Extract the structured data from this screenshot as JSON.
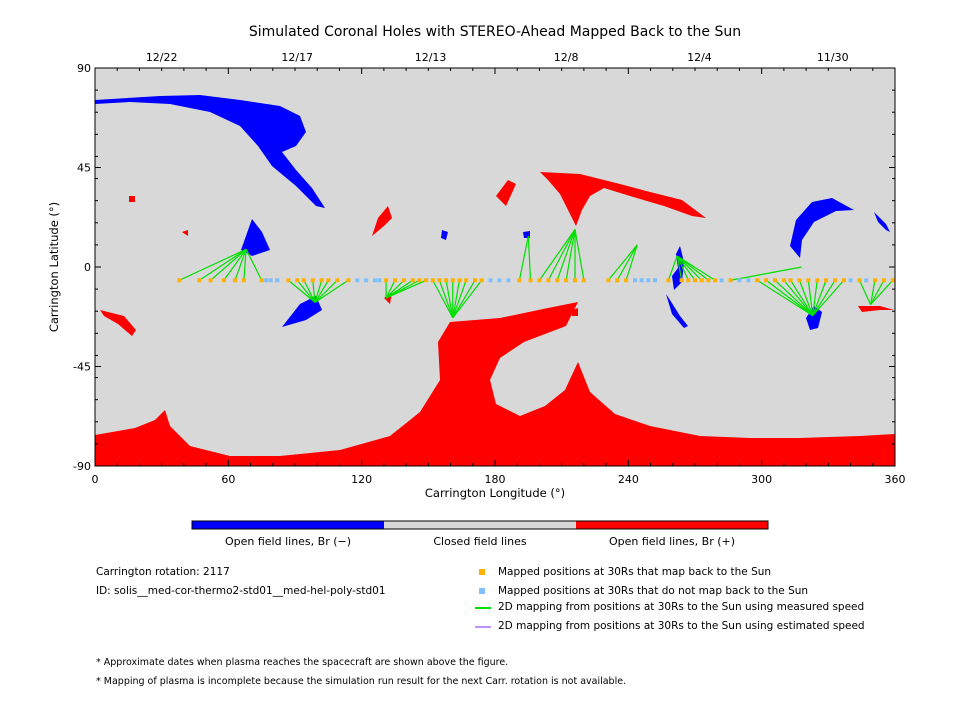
{
  "chart_data": {
    "type": "scatter",
    "title": "Simulated Coronal Holes with STEREO-Ahead Mapped Back to the Sun",
    "xlabel": "Carrington Longitude (°)",
    "ylabel": "Carrington Latitude (°)",
    "xlim": [
      0,
      360
    ],
    "ylim": [
      -90,
      90
    ],
    "x_ticks": [
      "0",
      "60",
      "120",
      "180",
      "240",
      "300",
      "360"
    ],
    "y_ticks": [
      "90",
      "45",
      "0",
      "-45",
      "-90"
    ],
    "top_date_ticks": [
      {
        "label": "12/22",
        "lon": 30
      },
      {
        "label": "12/17",
        "lon": 91
      },
      {
        "label": "12/13",
        "lon": 151
      },
      {
        "label": "12/8",
        "lon": 212
      },
      {
        "label": "12/4",
        "lon": 272
      },
      {
        "label": "11/30",
        "lon": 332
      }
    ],
    "grid": false,
    "colors": {
      "closed": "#d8d8d8",
      "open_negative": "#0000ff",
      "open_positive": "#ff0000",
      "mapped": "#ffb000",
      "unmapped": "#7fbfff",
      "measured": "#00e000",
      "estimated": "#c090ff"
    },
    "series": [
      {
        "name": "Mapped positions at 30Rs that map back to the Sun",
        "points": [
          {
            "x": 38,
            "y": -6,
            "to": [
              68,
              8
            ]
          },
          {
            "x": 47,
            "y": -6,
            "to": [
              68,
              8
            ]
          },
          {
            "x": 52,
            "y": -6,
            "to": [
              68,
              8
            ]
          },
          {
            "x": 58,
            "y": -6,
            "to": [
              68,
              8
            ]
          },
          {
            "x": 63,
            "y": -6,
            "to": [
              68,
              8
            ]
          },
          {
            "x": 67,
            "y": -6,
            "to": [
              68,
              8
            ]
          },
          {
            "x": 75,
            "y": -6,
            "to": [
              68,
              8
            ]
          },
          {
            "x": 87,
            "y": -6,
            "to": [
              99,
              -16
            ]
          },
          {
            "x": 91,
            "y": -6,
            "to": [
              99,
              -16
            ]
          },
          {
            "x": 94,
            "y": -6,
            "to": [
              99,
              -16
            ]
          },
          {
            "x": 98,
            "y": -6,
            "to": [
              99,
              -16
            ]
          },
          {
            "x": 102,
            "y": -6,
            "to": [
              99,
              -16
            ]
          },
          {
            "x": 105,
            "y": -6,
            "to": [
              99,
              -16
            ]
          },
          {
            "x": 109,
            "y": -6,
            "to": [
              99,
              -16
            ]
          },
          {
            "x": 114,
            "y": -6,
            "to": [
              99,
              -16
            ]
          },
          {
            "x": 131,
            "y": -6,
            "to": [
              131,
              -14
            ]
          },
          {
            "x": 135,
            "y": -6,
            "to": [
              131,
              -14
            ]
          },
          {
            "x": 139,
            "y": -6,
            "to": [
              131,
              -14
            ]
          },
          {
            "x": 143,
            "y": -6,
            "to": [
              131,
              -14
            ]
          },
          {
            "x": 146,
            "y": -6,
            "to": [
              131,
              -14
            ]
          },
          {
            "x": 149,
            "y": -6,
            "to": [
              131,
              -14
            ]
          },
          {
            "x": 152,
            "y": -6,
            "to": [
              161,
              -23
            ]
          },
          {
            "x": 155,
            "y": -6,
            "to": [
              161,
              -23
            ]
          },
          {
            "x": 158,
            "y": -6,
            "to": [
              161,
              -23
            ]
          },
          {
            "x": 161,
            "y": -6,
            "to": [
              161,
              -23
            ]
          },
          {
            "x": 164,
            "y": -6,
            "to": [
              161,
              -23
            ]
          },
          {
            "x": 167,
            "y": -6,
            "to": [
              161,
              -23
            ]
          },
          {
            "x": 171,
            "y": -6,
            "to": [
              161,
              -23
            ]
          },
          {
            "x": 174,
            "y": -6,
            "to": [
              161,
              -23
            ]
          },
          {
            "x": 191,
            "y": -6,
            "to": [
              195,
              14
            ]
          },
          {
            "x": 196,
            "y": -6,
            "to": [
              195,
              14
            ]
          },
          {
            "x": 200,
            "y": -6,
            "to": [
              216,
              17
            ]
          },
          {
            "x": 204,
            "y": -6,
            "to": [
              216,
              17
            ]
          },
          {
            "x": 208,
            "y": -6,
            "to": [
              216,
              17
            ]
          },
          {
            "x": 212,
            "y": -6,
            "to": [
              216,
              17
            ]
          },
          {
            "x": 216,
            "y": -6,
            "to": [
              216,
              17
            ]
          },
          {
            "x": 220,
            "y": -6,
            "to": [
              216,
              17
            ]
          },
          {
            "x": 231,
            "y": -6,
            "to": [
              244,
              10
            ]
          },
          {
            "x": 235,
            "y": -6,
            "to": [
              244,
              10
            ]
          },
          {
            "x": 239,
            "y": -6,
            "to": [
              244,
              10
            ]
          },
          {
            "x": 258,
            "y": -6,
            "to": [
              262,
              5
            ]
          },
          {
            "x": 264,
            "y": -6,
            "to": [
              262,
              5
            ]
          },
          {
            "x": 267,
            "y": -6,
            "to": [
              262,
              5
            ]
          },
          {
            "x": 270,
            "y": -6,
            "to": [
              262,
              5
            ]
          },
          {
            "x": 273,
            "y": -6,
            "to": [
              262,
              5
            ]
          },
          {
            "x": 276,
            "y": -6,
            "to": [
              262,
              5
            ]
          },
          {
            "x": 279,
            "y": -6,
            "to": [
              262,
              5
            ]
          },
          {
            "x": 286,
            "y": -6,
            "to": [
              318,
              0
            ]
          },
          {
            "x": 298,
            "y": -6,
            "to": [
              323,
              -22
            ]
          },
          {
            "x": 302,
            "y": -6,
            "to": [
              323,
              -22
            ]
          },
          {
            "x": 306,
            "y": -6,
            "to": [
              323,
              -22
            ]
          },
          {
            "x": 310,
            "y": -6,
            "to": [
              323,
              -22
            ]
          },
          {
            "x": 313,
            "y": -6,
            "to": [
              323,
              -22
            ]
          },
          {
            "x": 317,
            "y": -6,
            "to": [
              323,
              -22
            ]
          },
          {
            "x": 321,
            "y": -6,
            "to": [
              323,
              -22
            ]
          },
          {
            "x": 325,
            "y": -6,
            "to": [
              323,
              -22
            ]
          },
          {
            "x": 329,
            "y": -6,
            "to": [
              323,
              -22
            ]
          },
          {
            "x": 333,
            "y": -6,
            "to": [
              323,
              -22
            ]
          },
          {
            "x": 337,
            "y": -6,
            "to": [
              323,
              -22
            ]
          },
          {
            "x": 344,
            "y": -6,
            "to": [
              349,
              -17
            ]
          },
          {
            "x": 351,
            "y": -6,
            "to": [
              349,
              -17
            ]
          },
          {
            "x": 355,
            "y": -6,
            "to": [
              349,
              -17
            ]
          },
          {
            "x": 359,
            "y": -6,
            "to": [
              349,
              -17
            ]
          }
        ]
      },
      {
        "name": "Mapped positions at 30Rs that do not map back to the Sun",
        "points": [
          {
            "x": 77,
            "y": -6
          },
          {
            "x": 79,
            "y": -6
          },
          {
            "x": 82,
            "y": -6
          },
          {
            "x": 118,
            "y": -6
          },
          {
            "x": 122,
            "y": -6
          },
          {
            "x": 126,
            "y": -6
          },
          {
            "x": 128,
            "y": -6
          },
          {
            "x": 178,
            "y": -6
          },
          {
            "x": 182,
            "y": -6
          },
          {
            "x": 186,
            "y": -6
          },
          {
            "x": 243,
            "y": -6
          },
          {
            "x": 246,
            "y": -6
          },
          {
            "x": 249,
            "y": -6
          },
          {
            "x": 252,
            "y": -6
          },
          {
            "x": 282,
            "y": -6
          },
          {
            "x": 290,
            "y": -6
          },
          {
            "x": 294,
            "y": -6
          },
          {
            "x": 340,
            "y": -6
          },
          {
            "x": 347,
            "y": -6
          }
        ]
      }
    ]
  },
  "colorbar": {
    "labels": [
      "Open field lines, Br (−)",
      "Closed field lines",
      "Open field lines, Br (+)"
    ]
  },
  "info": {
    "rotation": "Carrington rotation: 2117",
    "id": "ID: solis__med-cor-thermo2-std01__med-hel-poly-std01"
  },
  "legend": [
    {
      "label": "Mapped positions at 30Rs that map back to the Sun",
      "symbol": "square",
      "color": "#ffb000"
    },
    {
      "label": "Mapped positions at 30Rs that do not map back to the Sun",
      "symbol": "square",
      "color": "#7fbfff"
    },
    {
      "label": "2D mapping from positions at 30Rs to the Sun using measured speed",
      "symbol": "line",
      "color": "#00e000"
    },
    {
      "label": "2D mapping from positions at 30Rs to the Sun using estimated speed",
      "symbol": "line",
      "color": "#c090ff"
    }
  ],
  "notes": [
    "* Approximate dates when plasma reaches the spacecraft are shown above the figure.",
    "* Mapping of plasma is incomplete because the simulation run result for the next Carr. rotation is not available."
  ]
}
